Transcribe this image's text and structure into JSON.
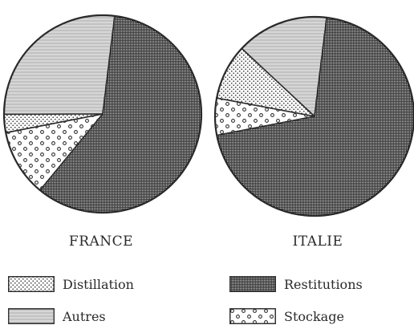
{
  "chart_data": [
    {
      "type": "pie",
      "title": "FRANCE",
      "slices": [
        {
          "label": "Autres",
          "value": 27
        },
        {
          "label": "Distillation",
          "value": 3
        },
        {
          "label": "Stockage",
          "value": 11
        },
        {
          "label": "Restitutions",
          "value": 59
        }
      ],
      "start_angle_deg": -83,
      "direction": "counterclockwise"
    },
    {
      "type": "pie",
      "title": "ITALIE",
      "slices": [
        {
          "label": "Autres",
          "value": 15
        },
        {
          "label": "Distillation",
          "value": 9
        },
        {
          "label": "Stockage",
          "value": 6
        },
        {
          "label": "Restitutions",
          "value": 70
        }
      ],
      "start_angle_deg": -83,
      "direction": "counterclockwise"
    }
  ],
  "legend": [
    {
      "label": "Distillation",
      "pattern": "dots"
    },
    {
      "label": "Restitutions",
      "pattern": "crosshatch"
    },
    {
      "label": "Autres",
      "pattern": "vlines"
    },
    {
      "label": "Stockage",
      "pattern": "circles"
    }
  ],
  "colors": {
    "ink": "#333333",
    "background": "#ffffff"
  }
}
